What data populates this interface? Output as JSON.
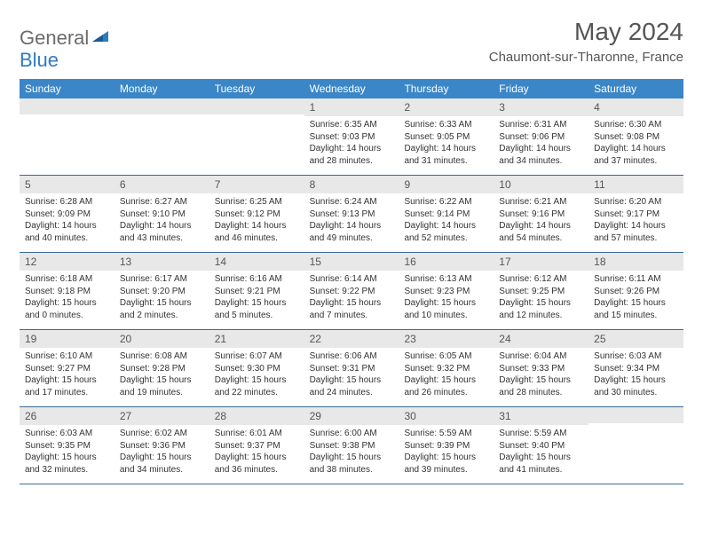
{
  "logo": {
    "general": "General",
    "blue": "Blue"
  },
  "title": "May 2024",
  "location": "Chaumont-sur-Tharonne, France",
  "day_headers": [
    "Sunday",
    "Monday",
    "Tuesday",
    "Wednesday",
    "Thursday",
    "Friday",
    "Saturday"
  ],
  "colors": {
    "header_bg": "#3b86c6",
    "week_border": "#3b6a94",
    "day_num_bg": "#e8e8e8",
    "logo_blue": "#2f7bbf",
    "logo_gray": "#6b6b6b"
  },
  "weeks": [
    [
      {
        "empty": true
      },
      {
        "empty": true
      },
      {
        "empty": true
      },
      {
        "num": "1",
        "sunrise": "Sunrise: 6:35 AM",
        "sunset": "Sunset: 9:03 PM",
        "day1": "Daylight: 14 hours",
        "day2": "and 28 minutes."
      },
      {
        "num": "2",
        "sunrise": "Sunrise: 6:33 AM",
        "sunset": "Sunset: 9:05 PM",
        "day1": "Daylight: 14 hours",
        "day2": "and 31 minutes."
      },
      {
        "num": "3",
        "sunrise": "Sunrise: 6:31 AM",
        "sunset": "Sunset: 9:06 PM",
        "day1": "Daylight: 14 hours",
        "day2": "and 34 minutes."
      },
      {
        "num": "4",
        "sunrise": "Sunrise: 6:30 AM",
        "sunset": "Sunset: 9:08 PM",
        "day1": "Daylight: 14 hours",
        "day2": "and 37 minutes."
      }
    ],
    [
      {
        "num": "5",
        "sunrise": "Sunrise: 6:28 AM",
        "sunset": "Sunset: 9:09 PM",
        "day1": "Daylight: 14 hours",
        "day2": "and 40 minutes."
      },
      {
        "num": "6",
        "sunrise": "Sunrise: 6:27 AM",
        "sunset": "Sunset: 9:10 PM",
        "day1": "Daylight: 14 hours",
        "day2": "and 43 minutes."
      },
      {
        "num": "7",
        "sunrise": "Sunrise: 6:25 AM",
        "sunset": "Sunset: 9:12 PM",
        "day1": "Daylight: 14 hours",
        "day2": "and 46 minutes."
      },
      {
        "num": "8",
        "sunrise": "Sunrise: 6:24 AM",
        "sunset": "Sunset: 9:13 PM",
        "day1": "Daylight: 14 hours",
        "day2": "and 49 minutes."
      },
      {
        "num": "9",
        "sunrise": "Sunrise: 6:22 AM",
        "sunset": "Sunset: 9:14 PM",
        "day1": "Daylight: 14 hours",
        "day2": "and 52 minutes."
      },
      {
        "num": "10",
        "sunrise": "Sunrise: 6:21 AM",
        "sunset": "Sunset: 9:16 PM",
        "day1": "Daylight: 14 hours",
        "day2": "and 54 minutes."
      },
      {
        "num": "11",
        "sunrise": "Sunrise: 6:20 AM",
        "sunset": "Sunset: 9:17 PM",
        "day1": "Daylight: 14 hours",
        "day2": "and 57 minutes."
      }
    ],
    [
      {
        "num": "12",
        "sunrise": "Sunrise: 6:18 AM",
        "sunset": "Sunset: 9:18 PM",
        "day1": "Daylight: 15 hours",
        "day2": "and 0 minutes."
      },
      {
        "num": "13",
        "sunrise": "Sunrise: 6:17 AM",
        "sunset": "Sunset: 9:20 PM",
        "day1": "Daylight: 15 hours",
        "day2": "and 2 minutes."
      },
      {
        "num": "14",
        "sunrise": "Sunrise: 6:16 AM",
        "sunset": "Sunset: 9:21 PM",
        "day1": "Daylight: 15 hours",
        "day2": "and 5 minutes."
      },
      {
        "num": "15",
        "sunrise": "Sunrise: 6:14 AM",
        "sunset": "Sunset: 9:22 PM",
        "day1": "Daylight: 15 hours",
        "day2": "and 7 minutes."
      },
      {
        "num": "16",
        "sunrise": "Sunrise: 6:13 AM",
        "sunset": "Sunset: 9:23 PM",
        "day1": "Daylight: 15 hours",
        "day2": "and 10 minutes."
      },
      {
        "num": "17",
        "sunrise": "Sunrise: 6:12 AM",
        "sunset": "Sunset: 9:25 PM",
        "day1": "Daylight: 15 hours",
        "day2": "and 12 minutes."
      },
      {
        "num": "18",
        "sunrise": "Sunrise: 6:11 AM",
        "sunset": "Sunset: 9:26 PM",
        "day1": "Daylight: 15 hours",
        "day2": "and 15 minutes."
      }
    ],
    [
      {
        "num": "19",
        "sunrise": "Sunrise: 6:10 AM",
        "sunset": "Sunset: 9:27 PM",
        "day1": "Daylight: 15 hours",
        "day2": "and 17 minutes."
      },
      {
        "num": "20",
        "sunrise": "Sunrise: 6:08 AM",
        "sunset": "Sunset: 9:28 PM",
        "day1": "Daylight: 15 hours",
        "day2": "and 19 minutes."
      },
      {
        "num": "21",
        "sunrise": "Sunrise: 6:07 AM",
        "sunset": "Sunset: 9:30 PM",
        "day1": "Daylight: 15 hours",
        "day2": "and 22 minutes."
      },
      {
        "num": "22",
        "sunrise": "Sunrise: 6:06 AM",
        "sunset": "Sunset: 9:31 PM",
        "day1": "Daylight: 15 hours",
        "day2": "and 24 minutes."
      },
      {
        "num": "23",
        "sunrise": "Sunrise: 6:05 AM",
        "sunset": "Sunset: 9:32 PM",
        "day1": "Daylight: 15 hours",
        "day2": "and 26 minutes."
      },
      {
        "num": "24",
        "sunrise": "Sunrise: 6:04 AM",
        "sunset": "Sunset: 9:33 PM",
        "day1": "Daylight: 15 hours",
        "day2": "and 28 minutes."
      },
      {
        "num": "25",
        "sunrise": "Sunrise: 6:03 AM",
        "sunset": "Sunset: 9:34 PM",
        "day1": "Daylight: 15 hours",
        "day2": "and 30 minutes."
      }
    ],
    [
      {
        "num": "26",
        "sunrise": "Sunrise: 6:03 AM",
        "sunset": "Sunset: 9:35 PM",
        "day1": "Daylight: 15 hours",
        "day2": "and 32 minutes."
      },
      {
        "num": "27",
        "sunrise": "Sunrise: 6:02 AM",
        "sunset": "Sunset: 9:36 PM",
        "day1": "Daylight: 15 hours",
        "day2": "and 34 minutes."
      },
      {
        "num": "28",
        "sunrise": "Sunrise: 6:01 AM",
        "sunset": "Sunset: 9:37 PM",
        "day1": "Daylight: 15 hours",
        "day2": "and 36 minutes."
      },
      {
        "num": "29",
        "sunrise": "Sunrise: 6:00 AM",
        "sunset": "Sunset: 9:38 PM",
        "day1": "Daylight: 15 hours",
        "day2": "and 38 minutes."
      },
      {
        "num": "30",
        "sunrise": "Sunrise: 5:59 AM",
        "sunset": "Sunset: 9:39 PM",
        "day1": "Daylight: 15 hours",
        "day2": "and 39 minutes."
      },
      {
        "num": "31",
        "sunrise": "Sunrise: 5:59 AM",
        "sunset": "Sunset: 9:40 PM",
        "day1": "Daylight: 15 hours",
        "day2": "and 41 minutes."
      },
      {
        "empty": true
      }
    ]
  ]
}
